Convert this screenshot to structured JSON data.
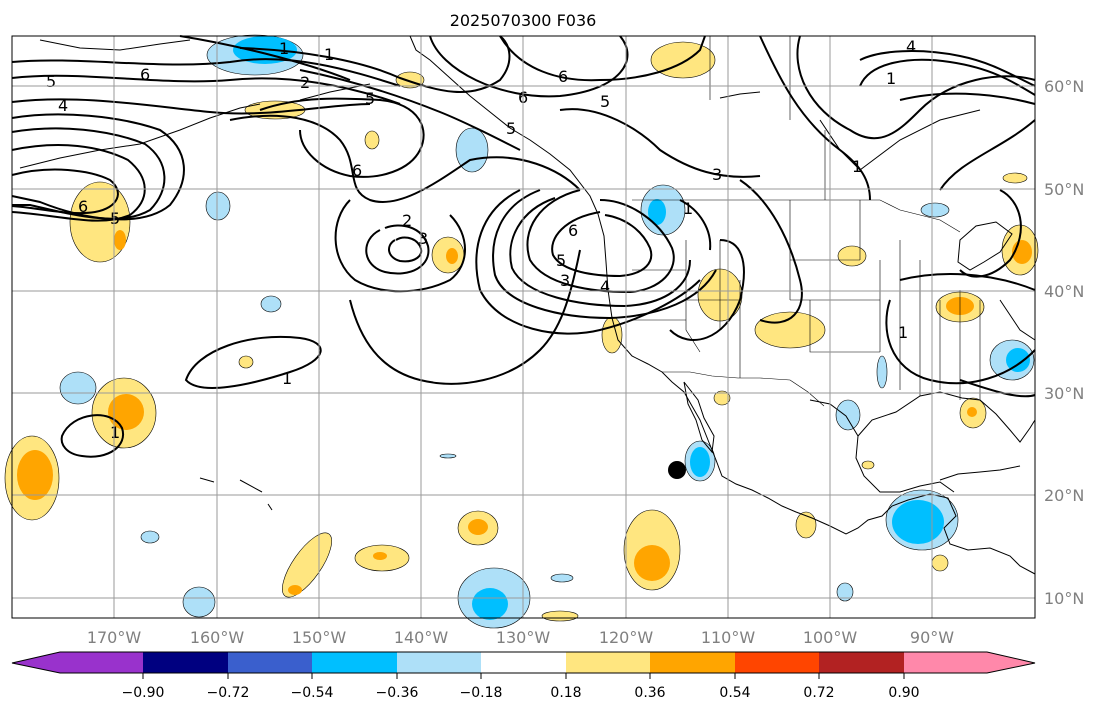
{
  "title": "2025070300 F036",
  "colors": {
    "background": "#ffffff",
    "grid": "#9a9a9a",
    "contour": "#000000",
    "coast": "#000000"
  },
  "lat_labels": [
    "60°N",
    "50°N",
    "40°N",
    "30°N",
    "20°N",
    "10°N"
  ],
  "lon_labels": [
    "170°W",
    "160°W",
    "150°W",
    "140°W",
    "130°W",
    "120°W",
    "110°W",
    "100°W",
    "90°W"
  ],
  "colorbar": {
    "colors": [
      "#9932cc",
      "#000080",
      "#3a5fcd",
      "#00bfff",
      "#aee0f8",
      "#ffffff",
      "#ffe680",
      "#ffa500",
      "#ff4500",
      "#b22222",
      "#ff88aa"
    ],
    "ticks": [
      "−0.90",
      "−0.72",
      "−0.54",
      "−0.36",
      "−0.18",
      "0.18",
      "0.36",
      "0.54",
      "0.72",
      "0.90"
    ]
  },
  "contour_labels": [
    "1",
    "2",
    "1",
    "5",
    "6",
    "5",
    "4",
    "6",
    "5",
    "6",
    "5",
    "6",
    "3",
    "4",
    "1",
    "1",
    "6",
    "5",
    "2",
    "3",
    "6",
    "5",
    "3",
    "4",
    "1",
    "1",
    "1",
    "1"
  ],
  "marker": {
    "name": "storm-center",
    "color": "#000000"
  }
}
